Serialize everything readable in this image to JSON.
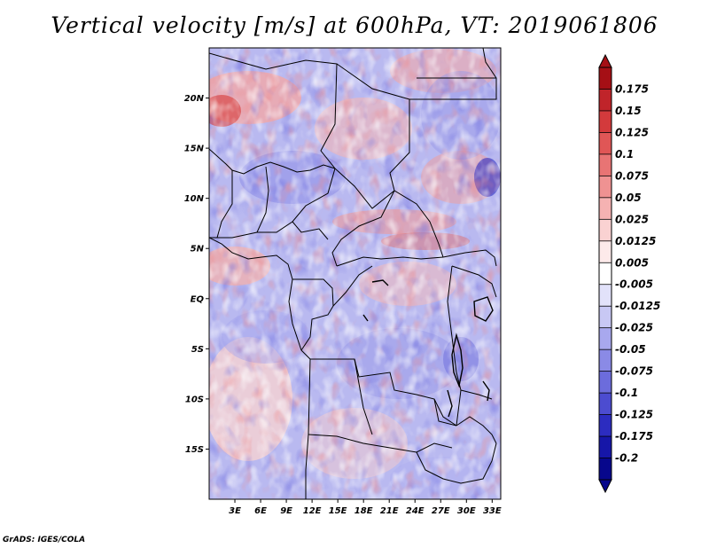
{
  "title": "Vertical velocity [m/s] at 600hPa, VT: 2019061806",
  "credit": "GrADS: IGES/COLA",
  "map": {
    "lon_range": [
      0,
      34
    ],
    "lat_range": [
      -20,
      25
    ],
    "lat_labels": [
      "20N",
      "15N",
      "10N",
      "5N",
      "EQ",
      "5S",
      "10S",
      "15S"
    ],
    "lat_values": [
      20,
      15,
      10,
      5,
      0,
      -5,
      -10,
      -15
    ],
    "lon_labels": [
      "3E",
      "6E",
      "9E",
      "12E",
      "15E",
      "18E",
      "21E",
      "24E",
      "27E",
      "30E",
      "33E"
    ],
    "lon_values": [
      3,
      6,
      9,
      12,
      15,
      18,
      21,
      24,
      27,
      30,
      33
    ]
  },
  "colorbar": {
    "labels": [
      "0.175",
      "0.15",
      "0.125",
      "0.1",
      "0.075",
      "0.05",
      "0.025",
      "0.0125",
      "0.005",
      "-0.005",
      "-0.0125",
      "-0.025",
      "-0.05",
      "-0.075",
      "-0.1",
      "-0.125",
      "-0.175",
      "-0.2"
    ],
    "colors": [
      "#a50f15",
      "#c0242a",
      "#d33a3c",
      "#e05656",
      "#e87474",
      "#ef9292",
      "#f5b2b2",
      "#fad2d2",
      "#fdeaea",
      "#ffffff",
      "#e2e2fa",
      "#c8c8f4",
      "#a8a8ee",
      "#8a8ae6",
      "#6c6cdc",
      "#4c4cd0",
      "#2c2cc0",
      "#1616a8",
      "#07078c"
    ]
  }
}
